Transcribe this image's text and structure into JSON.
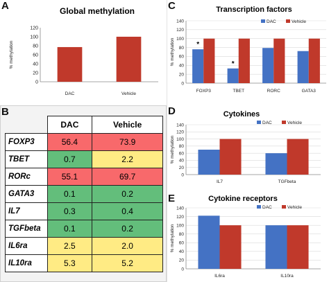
{
  "colors": {
    "dac": "#4472c4",
    "vehicle": "#c0392b",
    "high": "#f8696b",
    "mid": "#ffeb84",
    "low": "#63be7b"
  },
  "panels": {
    "A": {
      "letter": "A"
    },
    "B": {
      "letter": "B"
    },
    "C": {
      "letter": "C"
    },
    "D": {
      "letter": "D"
    },
    "E": {
      "letter": "E"
    }
  },
  "chart_data": [
    {
      "id": "A",
      "type": "bar",
      "title": "Global methylation",
      "ylabel": "% methylation",
      "categories": [
        "DAC",
        "Vehicle"
      ],
      "series": [
        {
          "name": "",
          "values": [
            77,
            100
          ]
        }
      ],
      "ylim": [
        0,
        120
      ],
      "yticks": [
        0,
        20,
        40,
        60,
        80,
        100,
        120
      ],
      "legend": null,
      "grid": false
    },
    {
      "id": "C",
      "type": "bar",
      "title": "Transcription factors",
      "ylabel": "% methylation",
      "categories": [
        "FOXP3",
        "TBET",
        "RORC",
        "GATA3"
      ],
      "series": [
        {
          "name": "DAC",
          "values": [
            76,
            33,
            79,
            72
          ]
        },
        {
          "name": "Vehicle",
          "values": [
            100,
            100,
            100,
            100
          ]
        }
      ],
      "annotations": [
        {
          "category": "FOXP3",
          "text": "*"
        },
        {
          "category": "TBET",
          "text": "*"
        }
      ],
      "ylim": [
        0,
        140
      ],
      "yticks": [
        0,
        20,
        40,
        60,
        80,
        100,
        120,
        140
      ],
      "legend": "top-right",
      "grid": true
    },
    {
      "id": "D",
      "type": "bar",
      "title": "Cytokines",
      "ylabel": "% methylation",
      "categories": [
        "IL7",
        "TGFbeta"
      ],
      "series": [
        {
          "name": "DAC",
          "values": [
            70,
            60
          ]
        },
        {
          "name": "Vehicle",
          "values": [
            100,
            100
          ]
        }
      ],
      "ylim": [
        0,
        140
      ],
      "yticks": [
        0,
        20,
        40,
        60,
        80,
        100,
        120,
        140
      ],
      "legend": "top-right",
      "grid": true
    },
    {
      "id": "E",
      "type": "bar",
      "title": "Cytokine receptors",
      "ylabel": "% methylation",
      "categories": [
        "IL6ra",
        "IL10ra"
      ],
      "series": [
        {
          "name": "DAC",
          "values": [
            122,
            100
          ]
        },
        {
          "name": "Vehicle",
          "values": [
            100,
            100
          ]
        }
      ],
      "ylim": [
        0,
        140
      ],
      "yticks": [
        0,
        20,
        40,
        60,
        80,
        100,
        120,
        140
      ],
      "legend": "top-right",
      "grid": true
    }
  ],
  "table": {
    "headers": [
      "DAC",
      "Vehicle"
    ],
    "rows": [
      {
        "gene": "FOXP3",
        "dac": "56.4",
        "vehicle": "73.9",
        "dac_level": "high",
        "vehicle_level": "high"
      },
      {
        "gene": "TBET",
        "dac": "0.7",
        "vehicle": "2.2",
        "dac_level": "low",
        "vehicle_level": "mid"
      },
      {
        "gene": "RORc",
        "dac": "55.1",
        "vehicle": "69.7",
        "dac_level": "high",
        "vehicle_level": "high"
      },
      {
        "gene": "GATA3",
        "dac": "0.1",
        "vehicle": "0.2",
        "dac_level": "low",
        "vehicle_level": "low"
      },
      {
        "gene": "IL7",
        "dac": "0.3",
        "vehicle": "0.4",
        "dac_level": "low",
        "vehicle_level": "low"
      },
      {
        "gene": "TGFbeta",
        "dac": "0.1",
        "vehicle": "0.2",
        "dac_level": "low",
        "vehicle_level": "low"
      },
      {
        "gene": "IL6ra",
        "dac": "2.5",
        "vehicle": "2.0",
        "dac_level": "mid",
        "vehicle_level": "mid"
      },
      {
        "gene": "IL10ra",
        "dac": "5.3",
        "vehicle": "5.2",
        "dac_level": "mid",
        "vehicle_level": "mid"
      }
    ]
  }
}
